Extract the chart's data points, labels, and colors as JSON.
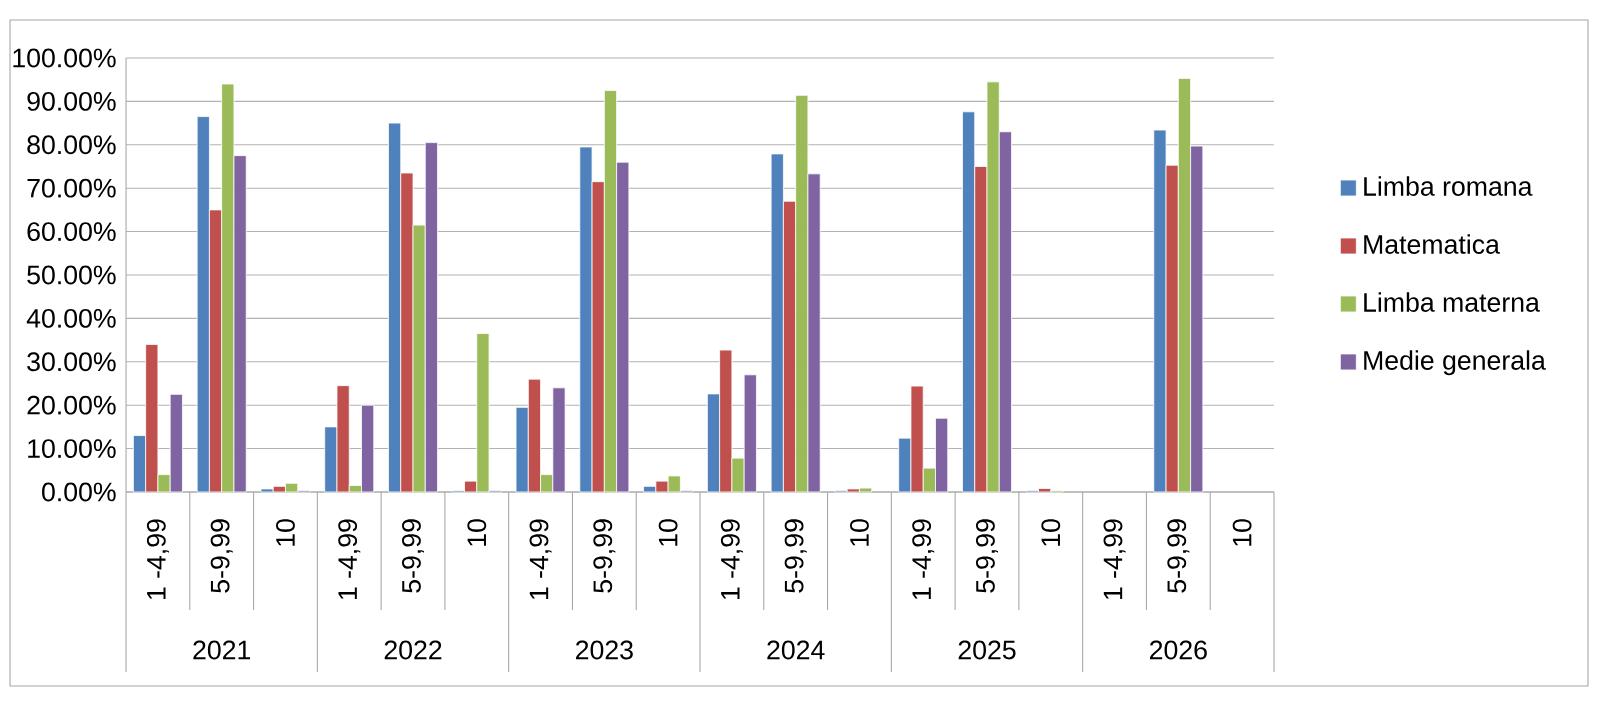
{
  "chart_data": {
    "type": "bar",
    "categories": [
      "1 -4,99",
      "5-9,99",
      "10",
      "1 -4,99",
      "5-9,99",
      "10",
      "1 -4,99",
      "5-9,99",
      "10",
      "1 -4,99",
      "5-9,99",
      "10",
      "1 -4,99",
      "5-9,99",
      "10",
      "1 -4,99",
      "5-9,99",
      "10"
    ],
    "series": [
      {
        "name": "Limba romana",
        "color": "#4f81bd",
        "values": [
          13,
          86.5,
          0.7,
          15,
          85,
          0.3,
          19.5,
          79.5,
          1.3,
          22.6,
          77.9,
          0.3,
          12.4,
          87.6,
          0.3,
          null,
          83.4,
          null
        ]
      },
      {
        "name": "Matematica",
        "color": "#c0504d",
        "values": [
          34,
          65,
          1.3,
          24.5,
          73.5,
          2.5,
          26,
          71.5,
          2.5,
          32.7,
          67,
          0.7,
          24.4,
          75,
          0.8,
          null,
          75.3,
          null
        ]
      },
      {
        "name": "Limba materna",
        "color": "#9bbb59",
        "values": [
          4,
          94,
          2,
          1.5,
          61.5,
          36.5,
          4,
          92.5,
          3.7,
          7.8,
          91.4,
          0.9,
          5.5,
          94.5,
          0.3,
          null,
          95.3,
          null
        ]
      },
      {
        "name": "Medie generala",
        "color": "#8064a2",
        "values": [
          22.5,
          77.5,
          0.3,
          20,
          80.5,
          0.3,
          24,
          76,
          0.3,
          27,
          73.3,
          null,
          17,
          83,
          null,
          null,
          79.7,
          null
        ]
      }
    ],
    "annotations": [
      "2021",
      "2022",
      "2023",
      "2024",
      "2025",
      "2026"
    ],
    "ylim": [
      0,
      100
    ],
    "yticks": [
      {
        "value": 0,
        "label": "0.00%"
      },
      {
        "value": 10,
        "label": "10.00%"
      },
      {
        "value": 20,
        "label": "20.00%"
      },
      {
        "value": 30,
        "label": "30.00%"
      },
      {
        "value": 40,
        "label": "40.00%"
      },
      {
        "value": 50,
        "label": "50.00%"
      },
      {
        "value": 60,
        "label": "60.00%"
      },
      {
        "value": 70,
        "label": "70.00%"
      },
      {
        "value": 80,
        "label": "80.00%"
      },
      {
        "value": 90,
        "label": "90.00%"
      },
      {
        "value": 100,
        "label": "100.00%"
      }
    ],
    "grid": "y",
    "legend": "right"
  }
}
